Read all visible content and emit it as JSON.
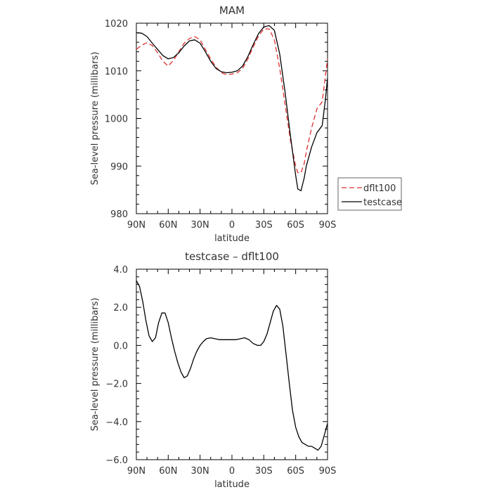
{
  "chart_data": [
    {
      "type": "line",
      "title": "MAM",
      "xlabel": "latitude",
      "ylabel": "Sea-level pressure (millibars)",
      "xlim": [
        90,
        -90
      ],
      "ylim": [
        980,
        1020
      ],
      "xticks": [
        90,
        60,
        30,
        0,
        -30,
        -60,
        -90
      ],
      "xticklabels": [
        "90N",
        "60N",
        "30N",
        "0",
        "30S",
        "60S",
        "90S"
      ],
      "yticks": [
        980,
        990,
        1000,
        1010,
        1020
      ],
      "yticklabels": [
        "980",
        "990",
        "1000",
        "1010",
        "1020"
      ],
      "grid": false,
      "legend_position": "right",
      "series": [
        {
          "name": "dflt100",
          "color": "#e03030",
          "dash": "dashed",
          "x": [
            90,
            85,
            80,
            75,
            70,
            65,
            60,
            55,
            50,
            45,
            40,
            35,
            30,
            25,
            20,
            15,
            10,
            5,
            0,
            -5,
            -10,
            -15,
            -20,
            -25,
            -30,
            -35,
            -40,
            -45,
            -50,
            -55,
            -60,
            -62,
            -65,
            -68,
            -70,
            -75,
            -80,
            -85,
            -90
          ],
          "y": [
            1014.5,
            1015.4,
            1015.9,
            1015.3,
            1013.8,
            1012.0,
            1011.0,
            1012.2,
            1014.0,
            1015.8,
            1016.8,
            1017.2,
            1016.5,
            1014.5,
            1012.5,
            1010.8,
            1009.6,
            1009.2,
            1009.3,
            1009.6,
            1010.5,
            1012.5,
            1015.0,
            1017.3,
            1018.8,
            1018.8,
            1016.5,
            1010.5,
            1003.0,
            995.5,
            990.0,
            988.6,
            988.6,
            990.5,
            993.0,
            998.0,
            1002.0,
            1003.5,
            1012.5
          ]
        },
        {
          "name": "testcase",
          "color": "#000000",
          "dash": "solid",
          "x": [
            90,
            85,
            80,
            75,
            70,
            65,
            60,
            55,
            50,
            45,
            40,
            35,
            30,
            25,
            20,
            15,
            10,
            5,
            0,
            -5,
            -10,
            -15,
            -20,
            -25,
            -30,
            -35,
            -40,
            -45,
            -50,
            -55,
            -60,
            -62,
            -65,
            -68,
            -70,
            -75,
            -80,
            -85,
            -88,
            -90
          ],
          "y": [
            1018.0,
            1017.9,
            1017.2,
            1015.8,
            1014.5,
            1013.2,
            1012.5,
            1012.8,
            1013.8,
            1015.2,
            1016.3,
            1016.5,
            1015.8,
            1014.0,
            1012.0,
            1010.5,
            1009.8,
            1009.6,
            1009.7,
            1010.0,
            1011.0,
            1013.0,
            1015.5,
            1017.8,
            1019.2,
            1019.5,
            1018.5,
            1013.5,
            1005.5,
            996.5,
            988.0,
            985.2,
            984.8,
            987.5,
            990.0,
            994.0,
            997.0,
            998.5,
            1004.0,
            1008.5
          ]
        }
      ]
    },
    {
      "type": "line",
      "title": "testcase – dflt100",
      "xlabel": "latitude",
      "ylabel": "Sea-level pressure (millibars)",
      "xlim": [
        90,
        -90
      ],
      "ylim": [
        -6,
        4
      ],
      "xticks": [
        90,
        60,
        30,
        0,
        -30,
        -60,
        -90
      ],
      "xticklabels": [
        "90N",
        "60N",
        "30N",
        "0",
        "30S",
        "60S",
        "90S"
      ],
      "yticks": [
        -6,
        -4,
        -2,
        0,
        2,
        4
      ],
      "yticklabels": [
        "−6.0",
        "−4.0",
        "−2.0",
        "0.0",
        "2.0",
        "4.0"
      ],
      "grid": false,
      "series": [
        {
          "color": "#000000",
          "dash": "solid",
          "x": [
            90,
            87,
            84,
            81,
            78,
            75,
            72,
            69,
            66,
            63,
            60,
            57,
            54,
            51,
            48,
            45,
            42,
            39,
            36,
            33,
            30,
            27,
            24,
            20,
            16,
            12,
            8,
            4,
            0,
            -4,
            -8,
            -12,
            -16,
            -20,
            -24,
            -27,
            -30,
            -33,
            -36,
            -39,
            -42,
            -45,
            -48,
            -51,
            -54,
            -57,
            -60,
            -63,
            -66,
            -69,
            -72,
            -75,
            -78,
            -81,
            -84,
            -87,
            -90
          ],
          "y": [
            3.4,
            3.1,
            2.3,
            1.3,
            0.5,
            0.2,
            0.4,
            1.2,
            1.7,
            1.7,
            1.2,
            0.4,
            -0.3,
            -0.9,
            -1.4,
            -1.7,
            -1.6,
            -1.2,
            -0.7,
            -0.3,
            0.0,
            0.2,
            0.35,
            0.4,
            0.35,
            0.3,
            0.3,
            0.3,
            0.3,
            0.3,
            0.35,
            0.4,
            0.3,
            0.1,
            0.0,
            0.0,
            0.2,
            0.6,
            1.2,
            1.8,
            2.1,
            1.9,
            1.0,
            -0.5,
            -2.0,
            -3.4,
            -4.3,
            -4.8,
            -5.1,
            -5.2,
            -5.3,
            -5.3,
            -5.4,
            -5.5,
            -5.3,
            -4.7,
            -4.1
          ]
        }
      ]
    }
  ]
}
